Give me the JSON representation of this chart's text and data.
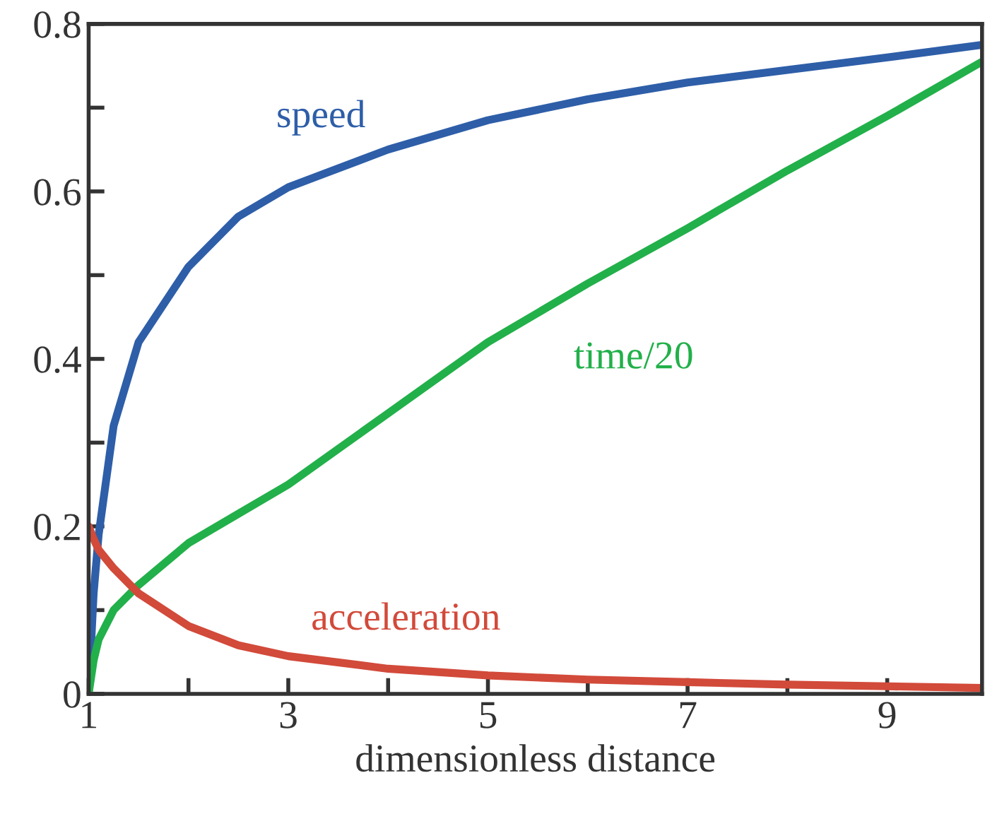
{
  "chart_data": {
    "type": "line",
    "xlabel": "dimensionless distance",
    "x": [
      1,
      1.05,
      1.1,
      1.25,
      1.5,
      2,
      2.5,
      3,
      4,
      5,
      6,
      7,
      8,
      9,
      9.95
    ],
    "xlim": [
      1,
      9.95
    ],
    "xticks": [
      1,
      {
        "value": 2,
        "label": null
      },
      3,
      {
        "value": 4,
        "label": null
      },
      5,
      {
        "value": 6,
        "label": null
      },
      7,
      {
        "value": 8,
        "label": null
      },
      9
    ],
    "ylim": [
      0,
      0.8
    ],
    "yticks": [
      0,
      {
        "value": 0.1,
        "label": null
      },
      0.2,
      {
        "value": 0.3,
        "label": null
      },
      0.4,
      {
        "value": 0.5,
        "label": null
      },
      0.6,
      {
        "value": 0.7,
        "label": null
      },
      0.8
    ],
    "grid": false,
    "legend": false,
    "marker": "none",
    "line_style": "solid",
    "series": [
      {
        "name": "speed",
        "color": "#2e5ea8",
        "values": [
          0,
          0.12,
          0.19,
          0.32,
          0.42,
          0.51,
          0.57,
          0.605,
          0.65,
          0.685,
          0.71,
          0.73,
          0.745,
          0.76,
          0.775
        ]
      },
      {
        "name": "time/20",
        "color": "#22b04a",
        "values": [
          0,
          0.04,
          0.065,
          0.1,
          0.13,
          0.18,
          0.215,
          0.25,
          0.335,
          0.42,
          0.49,
          0.556,
          0.625,
          0.69,
          0.755
        ]
      },
      {
        "name": "acceleration",
        "color": "#d24a3a",
        "values": [
          0.2,
          0.185,
          0.172,
          0.15,
          0.12,
          0.081,
          0.058,
          0.045,
          0.03,
          0.022,
          0.017,
          0.014,
          0.011,
          0.009,
          0.007
        ]
      }
    ]
  }
}
